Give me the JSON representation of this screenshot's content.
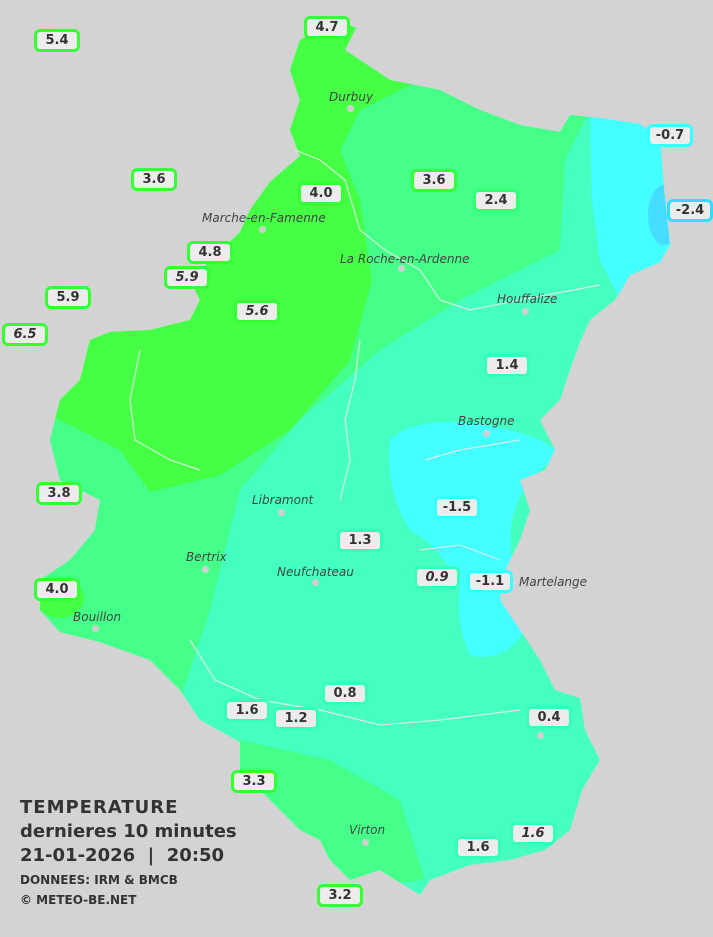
{
  "title": {
    "line1": "TEMPERATURE",
    "line2": "dernieres 10 minutes",
    "line3": "21-01-2026  |  20:50",
    "source": "DONNEES: IRM & BMCB",
    "copyright": "© METEO-BE.NET"
  },
  "colors": {
    "background": "#d3d3d3",
    "zone_above_4": "#44ff44",
    "zone_2_to_4": "#44ff88",
    "zone_0_to_2": "#44ffc0",
    "zone_minus2_to_0": "#44ffff",
    "zone_below_minus2": "#44ddff",
    "box_border_above_3": "#33ff33",
    "box_border_2_to_3": "#33ff77",
    "box_border_0_to_2": "#33ffbb",
    "box_border_minus2_to_0": "#33ffff",
    "box_border_below_minus2": "#33ddff"
  },
  "cities": [
    "Durbuy",
    "Marche-en-Famenne",
    "La Roche-en-Ardenne",
    "Houffalize",
    "Bastogne",
    "Libramont",
    "Bertrix",
    "Neufchateau",
    "Bouillon",
    "Virton",
    "Martelange"
  ],
  "stations": [
    {
      "value": "5.4",
      "italic": false
    },
    {
      "value": "4.7",
      "italic": false
    },
    {
      "value": "-0.7",
      "italic": false
    },
    {
      "value": "3.6",
      "italic": false
    },
    {
      "value": "3.6",
      "italic": false
    },
    {
      "value": "4.0",
      "italic": false
    },
    {
      "value": "2.4",
      "italic": false
    },
    {
      "value": "-2.4",
      "italic": false
    },
    {
      "value": "4.8",
      "italic": false
    },
    {
      "value": "5.9",
      "italic": true
    },
    {
      "value": "5.9",
      "italic": false
    },
    {
      "value": "5.6",
      "italic": true
    },
    {
      "value": "6.5",
      "italic": true
    },
    {
      "value": "1.4",
      "italic": false
    },
    {
      "value": "3.8",
      "italic": false
    },
    {
      "value": "-1.5",
      "italic": false
    },
    {
      "value": "1.3",
      "italic": false
    },
    {
      "value": "0.9",
      "italic": true
    },
    {
      "value": "-1.1",
      "italic": false
    },
    {
      "value": "4.0",
      "italic": false
    },
    {
      "value": "0.8",
      "italic": false
    },
    {
      "value": "1.6",
      "italic": false
    },
    {
      "value": "1.2",
      "italic": false
    },
    {
      "value": "0.4",
      "italic": false
    },
    {
      "value": "3.3",
      "italic": false
    },
    {
      "value": "1.6",
      "italic": false
    },
    {
      "value": "1.6",
      "italic": true
    },
    {
      "value": "3.2",
      "italic": false
    }
  ]
}
